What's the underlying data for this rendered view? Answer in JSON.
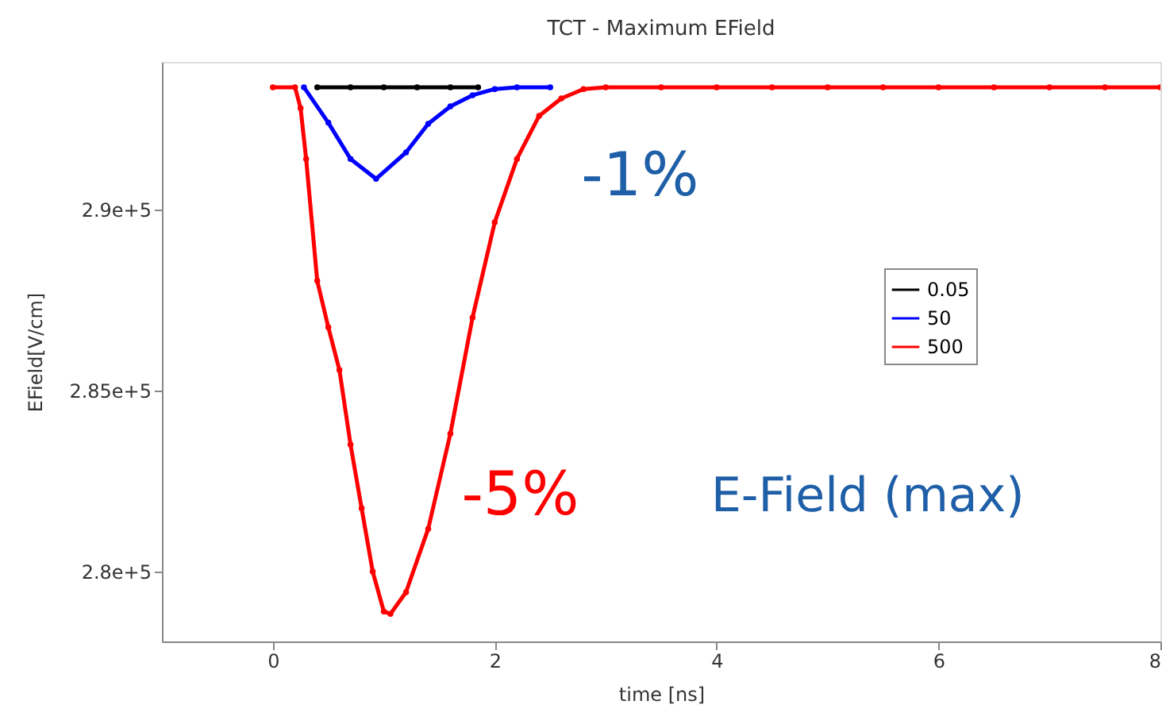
{
  "chart_data": {
    "type": "line",
    "title": "TCT - Maximum EField",
    "xlabel": "time [ns]",
    "ylabel": "EField[V/cm]",
    "xlim": [
      -1,
      8
    ],
    "xticks": [
      0,
      2,
      4,
      6,
      8
    ],
    "ylim": [
      278070,
      294080
    ],
    "yticks": [
      {
        "value": 280000,
        "label": "2.8e+5"
      },
      {
        "value": 285000,
        "label": "2.85e+5"
      },
      {
        "value": 290000,
        "label": "2.9e+5"
      }
    ],
    "grid": false,
    "legend": "right",
    "marker": "circle",
    "line_style": "solid",
    "series": [
      {
        "name": "0.05",
        "color": "#000000",
        "x": [
          0.4,
          0.7,
          1.0,
          1.3,
          1.6,
          1.85
        ],
        "values": [
          293380,
          293380,
          293380,
          293380,
          293380,
          293380
        ]
      },
      {
        "name": "50",
        "color": "#0000ff",
        "x": [
          0.28,
          0.5,
          0.7,
          0.93,
          1.2,
          1.4,
          1.6,
          1.8,
          2.0,
          2.2,
          2.5
        ],
        "values": [
          293380,
          292400,
          291400,
          290850,
          291580,
          292370,
          292850,
          293160,
          293330,
          293380,
          293380
        ]
      },
      {
        "name": "500",
        "color": "#ff0000",
        "x": [
          0,
          0.2,
          0.25,
          0.3,
          0.4,
          0.5,
          0.6,
          0.7,
          0.8,
          0.9,
          1.0,
          1.06,
          1.2,
          1.4,
          1.6,
          1.8,
          2.0,
          2.2,
          2.4,
          2.6,
          2.8,
          3.0,
          3.5,
          4.0,
          4.5,
          5.0,
          5.5,
          6.0,
          6.5,
          7.0,
          7.5,
          8.0
        ],
        "values": [
          293380,
          293380,
          292800,
          291400,
          288030,
          286750,
          285570,
          283510,
          281750,
          280000,
          278900,
          278830,
          279430,
          281180,
          283810,
          287020,
          289650,
          291400,
          292590,
          293070,
          293330,
          293380,
          293380,
          293380,
          293380,
          293380,
          293380,
          293380,
          293380,
          293380,
          293380,
          293380
        ]
      }
    ],
    "annotations": [
      "-1%",
      "-5%",
      "E-Field (max)"
    ]
  }
}
